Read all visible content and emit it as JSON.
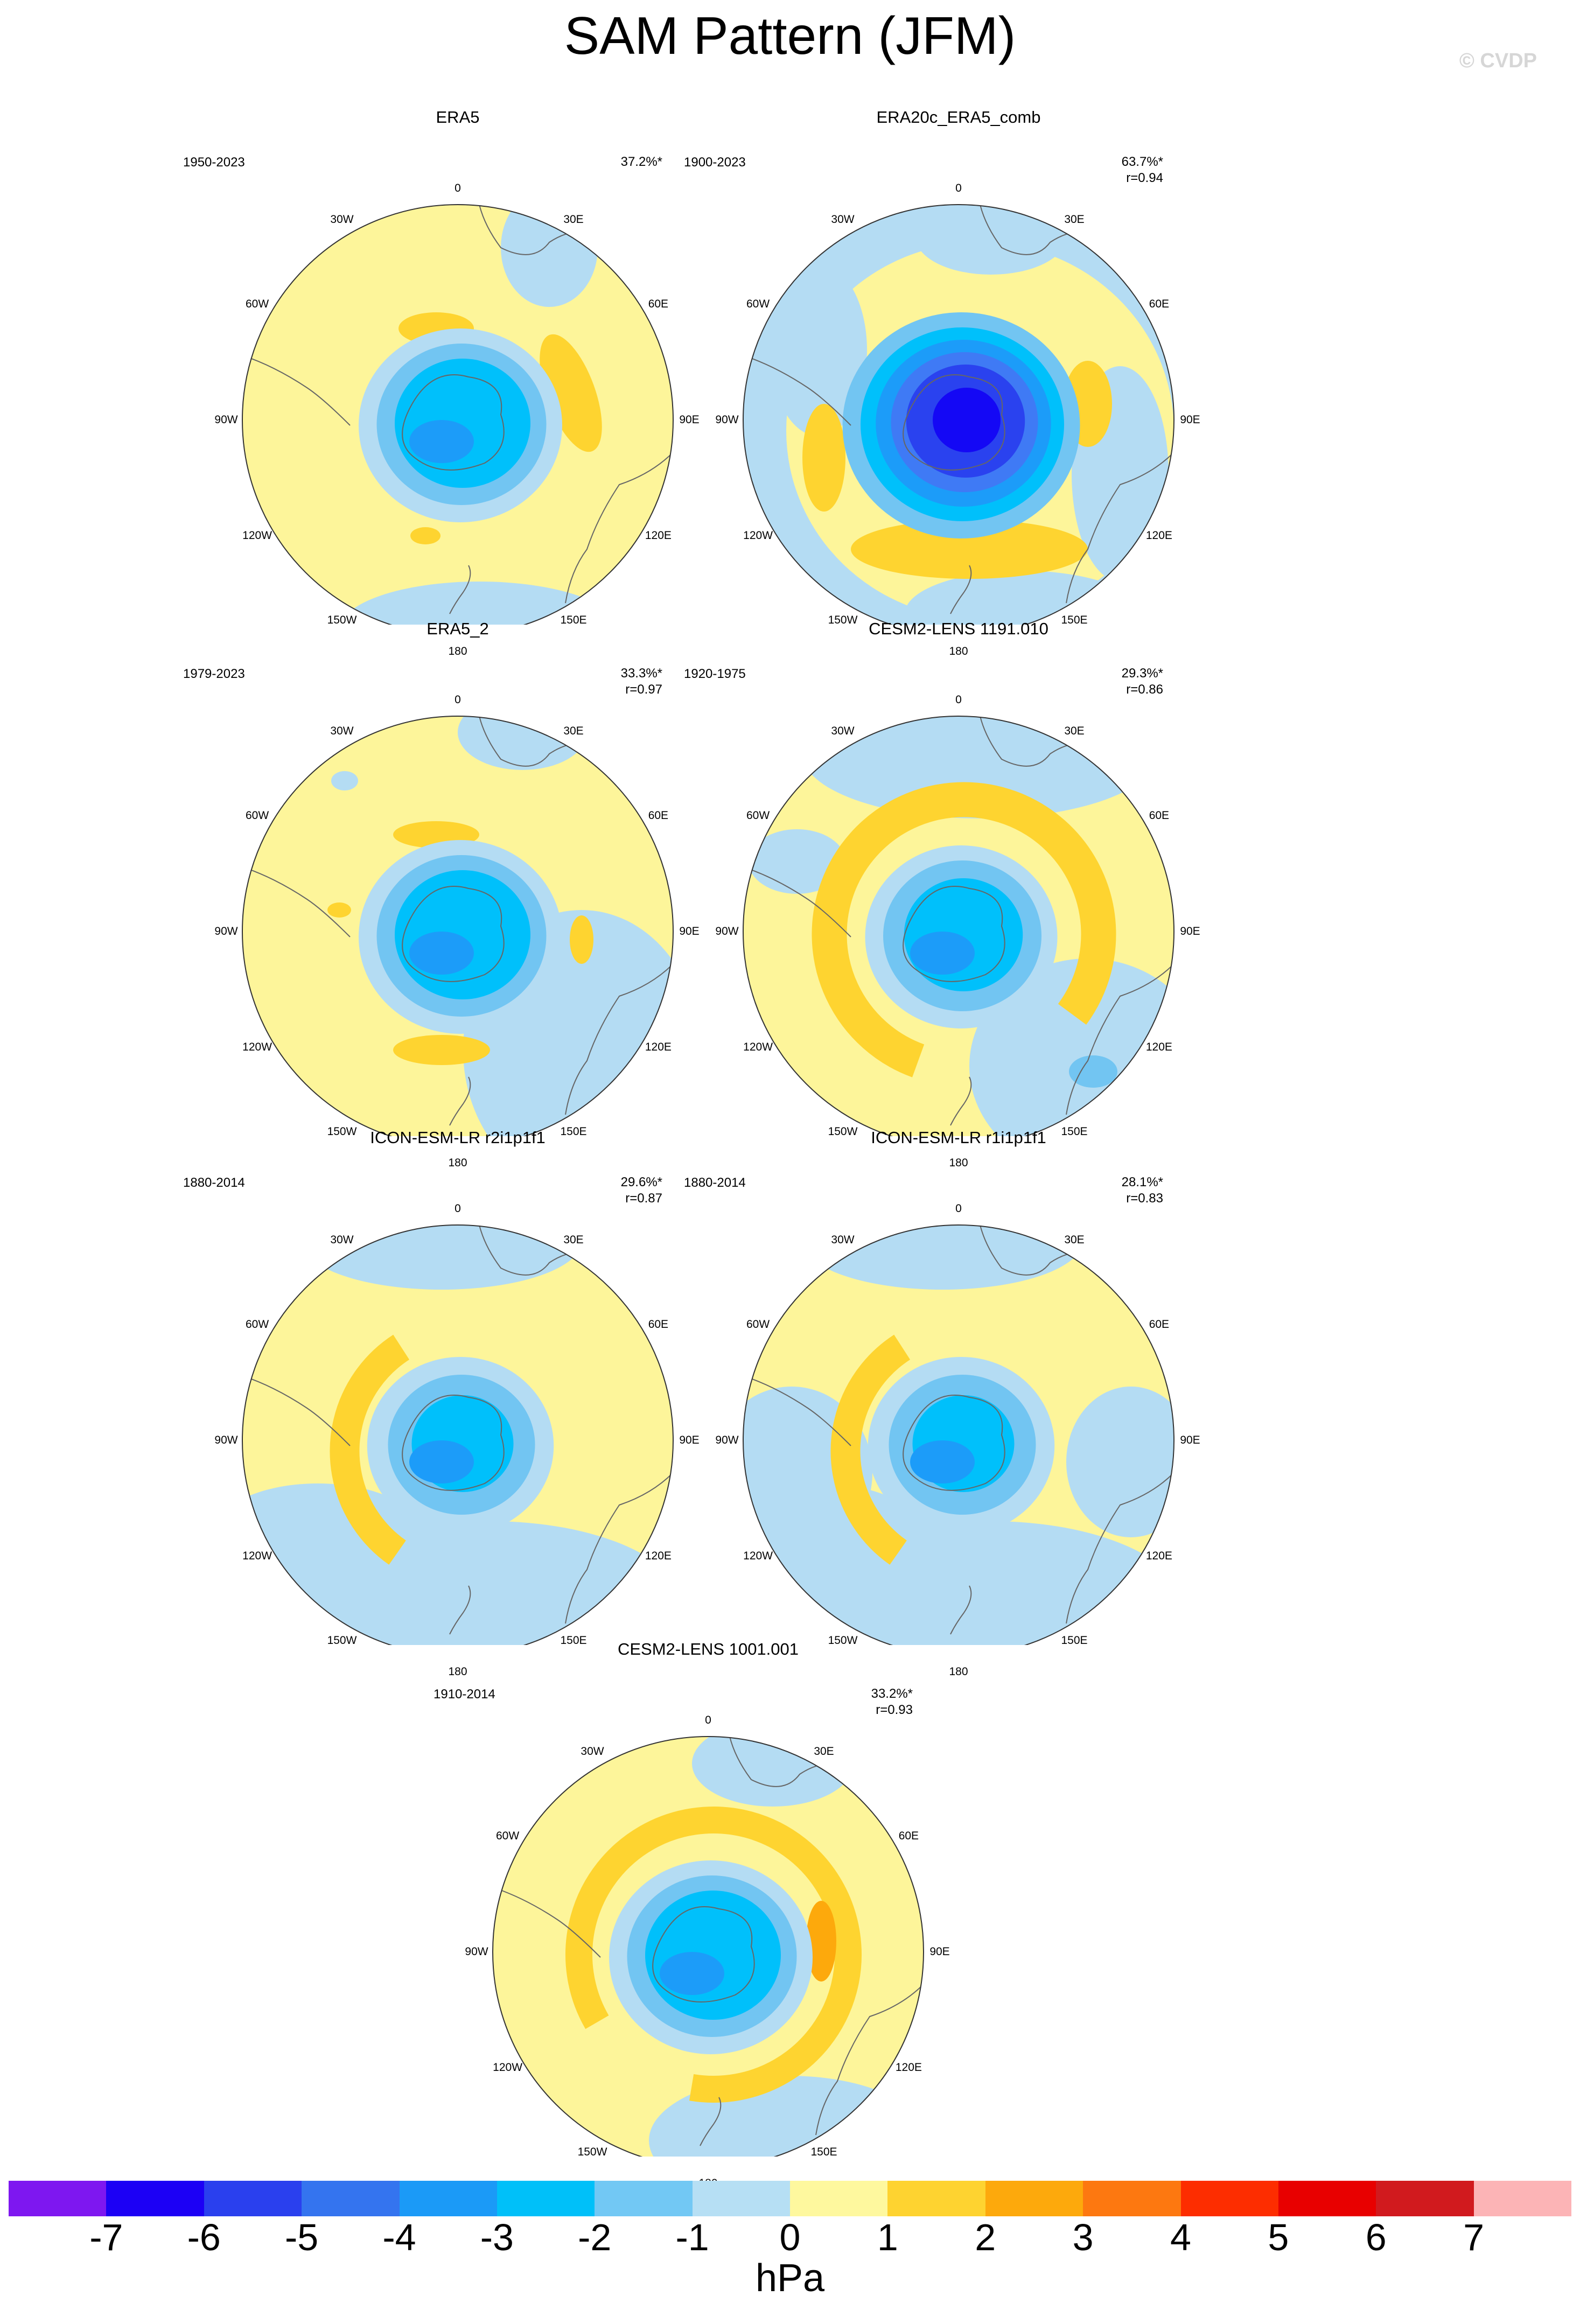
{
  "title": "SAM Pattern (JFM)",
  "watermark": "© CVDP",
  "lon_labels": [
    "0",
    "30E",
    "60E",
    "90E",
    "120E",
    "150E",
    "180",
    "150W",
    "120W",
    "90W",
    "60W",
    "30W"
  ],
  "colors": {
    "ocean_neg1": "#b4dcf3",
    "pos1": "#fdf59a",
    "pos2": "#fed430",
    "neg2": "#72c5f2",
    "neg3": "#00c0fb",
    "neg4": "#1c9cf9",
    "neg5": "#3f7af5",
    "neg6": "#2a42ef",
    "neg7": "#1408f5",
    "coast": "#666666"
  },
  "panels": [
    {
      "title": "ERA5",
      "period": "1950-2023",
      "pct": "37.2%*",
      "r": ""
    },
    {
      "title": "ERA20c_ERA5_comb",
      "period": "1900-2023",
      "pct": "63.7%*",
      "r": "r=0.94"
    },
    {
      "title": "ERA5_2",
      "period": "1979-2023",
      "pct": "33.3%*",
      "r": "r=0.97"
    },
    {
      "title": "CESM2-LENS 1191.010",
      "period": "1920-1975",
      "pct": "29.3%*",
      "r": "r=0.86"
    },
    {
      "title": "ICON-ESM-LR r2i1p1f1",
      "period": "1880-2014",
      "pct": "29.6%*",
      "r": "r=0.87"
    },
    {
      "title": "ICON-ESM-LR r1i1p1f1",
      "period": "1880-2014",
      "pct": "28.1%*",
      "r": "r=0.83"
    },
    {
      "title": "CESM2-LENS 1001.001",
      "period": "1910-2014",
      "pct": "33.2%*",
      "r": "r=0.93"
    }
  ],
  "colorbar": {
    "colors": [
      "#7e17f0",
      "#1c00f5",
      "#2a40ee",
      "#3474ef",
      "#1b9af7",
      "#00c0f9",
      "#72c8f4",
      "#b6dff4",
      "#fef89e",
      "#fed330",
      "#fda90c",
      "#fd7810",
      "#fd2d00",
      "#e80000",
      "#d11a1e",
      "#fcb4b6"
    ],
    "ticks": [
      "-7",
      "-6",
      "-5",
      "-4",
      "-3",
      "-2",
      "-1",
      "0",
      "1",
      "2",
      "3",
      "4",
      "5",
      "6",
      "7"
    ],
    "units": "hPa"
  }
}
